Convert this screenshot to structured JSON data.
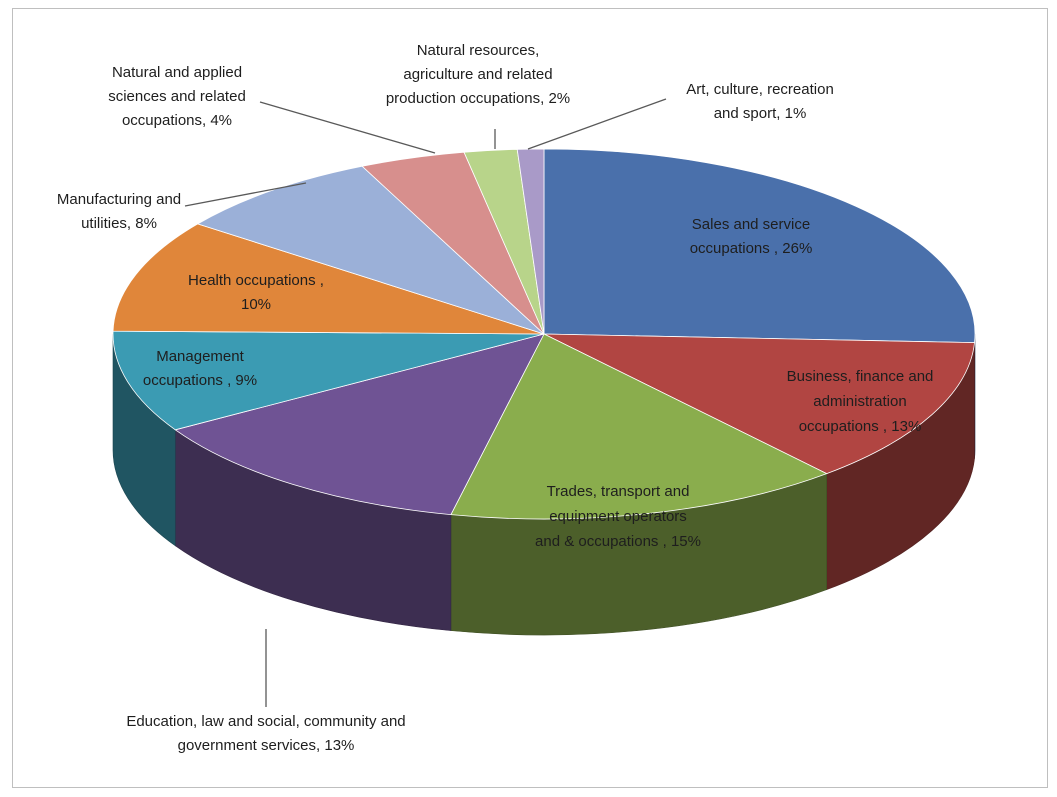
{
  "chart_data": {
    "type": "pie",
    "style": "3d",
    "title": "",
    "legend": "none",
    "slices": [
      {
        "name": "Sales and service occupations",
        "value": 26,
        "label_lines": [
          "Sales and service",
          "occupations , 26%"
        ],
        "color": "#4a70ab"
      },
      {
        "name": "Business, finance and administration occupations",
        "value": 13,
        "label_lines": [
          "Business, finance and",
          "administration",
          "occupations , 13%"
        ],
        "color": "#b14542"
      },
      {
        "name": "Trades, transport and equipment operators and & occupations",
        "value": 15,
        "label_lines": [
          "Trades, transport and",
          "equipment operators",
          "and & occupations , 15%"
        ],
        "color": "#8aad4d"
      },
      {
        "name": "Education, law and social, community and government services",
        "value": 13,
        "label_lines": [
          "Education, law and social, community and",
          "government services, 13%"
        ],
        "color": "#6f5394"
      },
      {
        "name": "Management occupations",
        "value": 9,
        "label_lines": [
          "Management",
          "occupations , 9%"
        ],
        "color": "#3b9bb3"
      },
      {
        "name": "Health occupations",
        "value": 10,
        "label_lines": [
          "Health occupations ,",
          "10%"
        ],
        "color": "#e0863a"
      },
      {
        "name": "Manufacturing and utilities",
        "value": 8,
        "label_lines": [
          "Manufacturing and",
          "utilities, 8%"
        ],
        "color": "#9bb0d8"
      },
      {
        "name": "Natural and applied sciences and related occupations",
        "value": 4,
        "label_lines": [
          "Natural and applied",
          "sciences and related",
          "occupations, 4%"
        ],
        "color": "#d78f8d"
      },
      {
        "name": "Natural resources, agriculture and related production occupations",
        "value": 2,
        "label_lines": [
          "Natural resources,",
          "agriculture and related",
          "production occupations, 2%"
        ],
        "color": "#b8d48a"
      },
      {
        "name": "Art, culture, recreation and sport",
        "value": 1,
        "label_lines": [
          "Art, culture, recreation",
          "and sport, 1%"
        ],
        "color": "#a99ac8"
      }
    ]
  }
}
